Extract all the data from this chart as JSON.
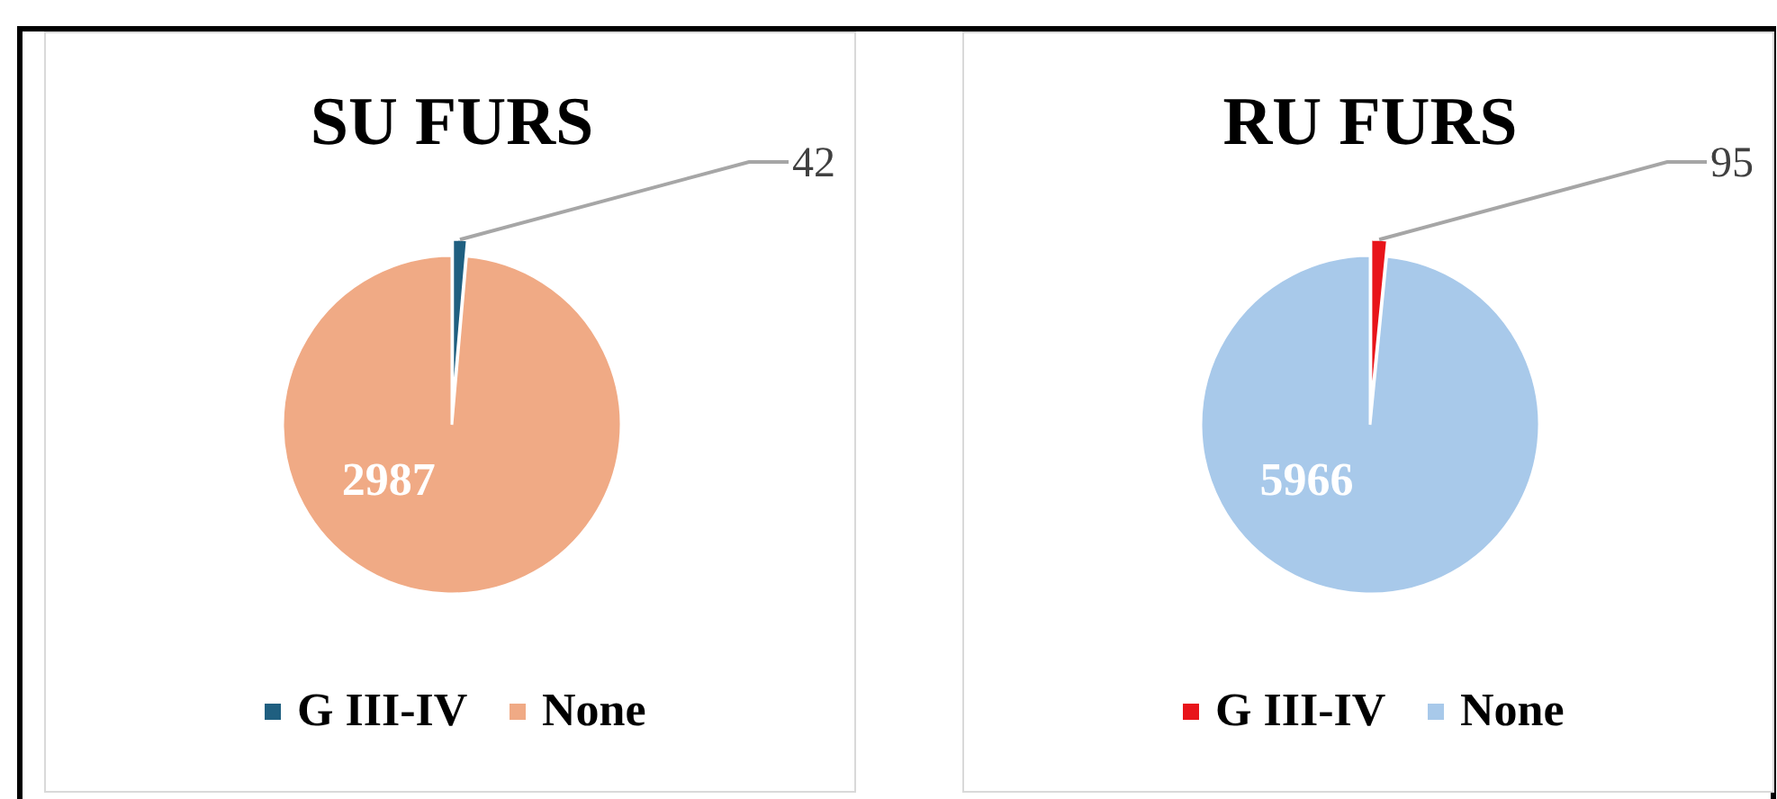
{
  "chart_data": [
    {
      "type": "pie",
      "title": "SU FURS",
      "categories": [
        "G III-IV",
        "None"
      ],
      "values": [
        42,
        2987
      ],
      "colors": [
        "#1f5f80",
        "#f0aa85"
      ],
      "data_labels": true,
      "legend": "bottom"
    },
    {
      "type": "pie",
      "title": "RU FURS",
      "categories": [
        "G III-IV",
        "None"
      ],
      "values": [
        95,
        5966
      ],
      "colors": [
        "#e8141a",
        "#a8c9ea"
      ],
      "data_labels": true,
      "legend": "bottom"
    }
  ]
}
